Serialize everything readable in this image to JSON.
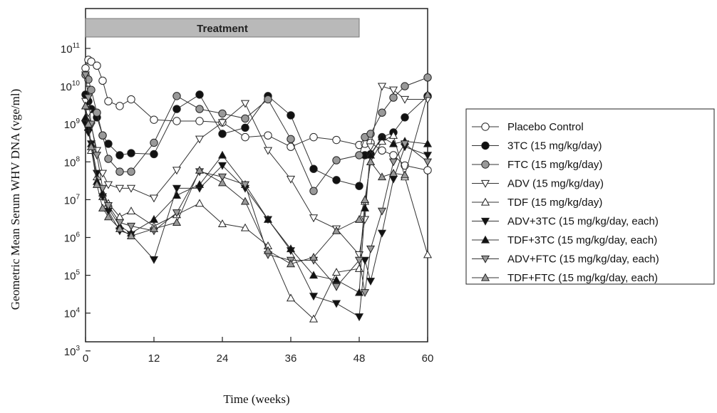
{
  "chart_data": {
    "type": "line",
    "title": "",
    "xlabel": "Time (weeks)",
    "ylabel": "Geometric Mean Serum WHV DNA (vge/ml)",
    "xlim": [
      0,
      60
    ],
    "x_ticks": [
      "0",
      "12",
      "24",
      "36",
      "48",
      "60"
    ],
    "y_scale": "log",
    "ylim": [
      1000,
      10000000000000
    ],
    "y_ticks": [
      {
        "base": "10",
        "exp": "3"
      },
      {
        "base": "10",
        "exp": "4"
      },
      {
        "base": "10",
        "exp": "5"
      },
      {
        "base": "10",
        "exp": "6"
      },
      {
        "base": "10",
        "exp": "7"
      },
      {
        "base": "10",
        "exp": "8"
      },
      {
        "base": "10",
        "exp": "9"
      },
      {
        "base": "10",
        "exp": "10"
      },
      {
        "base": "10",
        "exp": "11"
      }
    ],
    "annotation": {
      "label": "Treatment",
      "x_start": 0,
      "x_end": 48
    },
    "legend_position": "right",
    "grid": false,
    "series": [
      {
        "name": "Placebo Control",
        "marker": "circle",
        "fill": "#ffffff",
        "x": [
          0,
          0.5,
          1,
          2,
          3,
          4,
          6,
          8,
          12,
          16,
          20,
          24,
          28,
          32,
          36,
          40,
          44,
          48,
          49,
          50,
          52,
          54,
          56,
          60
        ],
        "y": [
          30000000000.0,
          50000000000.0,
          45000000000.0,
          35000000000.0,
          14000000000.0,
          4000000000.0,
          3000000000.0,
          4500000000.0,
          1300000000.0,
          1200000000.0,
          1200000000.0,
          1100000000.0,
          450000000.0,
          500000000.0,
          250000000.0,
          450000000.0,
          380000000.0,
          280000000.0,
          300000000.0,
          320000000.0,
          200000000.0,
          150000000.0,
          80000000.0,
          60000000.0
        ]
      },
      {
        "name": "3TC (15 mg/kg/day)",
        "marker": "circle",
        "fill": "#111111",
        "x": [
          0,
          0.5,
          1,
          2,
          3,
          4,
          6,
          8,
          12,
          16,
          20,
          24,
          28,
          32,
          36,
          40,
          44,
          48,
          49,
          50,
          52,
          54,
          56,
          60
        ],
        "y": [
          6000000000.0,
          4000000000.0,
          2500000000.0,
          1500000000.0,
          500000000.0,
          300000000.0,
          150000000.0,
          170000000.0,
          160000000.0,
          2500000000.0,
          6000000000.0,
          550000000.0,
          800000000.0,
          5500000000.0,
          1700000000.0,
          65000000.0,
          33000000.0,
          23000000.0,
          150000000.0,
          160000000.0,
          450000000.0,
          600000000.0,
          1500000000.0,
          5500000000.0
        ]
      },
      {
        "name": "FTC (15 mg/kg/day)",
        "marker": "circle",
        "fill": "#999999",
        "x": [
          0,
          0.5,
          1,
          2,
          3,
          4,
          6,
          8,
          12,
          16,
          20,
          24,
          28,
          32,
          36,
          40,
          44,
          48,
          49,
          50,
          52,
          54,
          56,
          60
        ],
        "y": [
          20000000000.0,
          15000000000.0,
          8000000000.0,
          2000000000.0,
          500000000.0,
          120000000.0,
          55000000.0,
          55000000.0,
          320000000.0,
          5500000000.0,
          2500000000.0,
          1900000000.0,
          1400000000.0,
          4500000000.0,
          400000000.0,
          17000000.0,
          110000000.0,
          150000000.0,
          450000000.0,
          550000000.0,
          2000000000.0,
          5000000000.0,
          10000000000.0,
          17000000000.0
        ]
      },
      {
        "name": "ADV (15 mg/kg/day)",
        "marker": "triangle-down",
        "fill": "#ffffff",
        "x": [
          0,
          0.5,
          1,
          2,
          3,
          4,
          6,
          8,
          12,
          16,
          20,
          24,
          28,
          32,
          36,
          40,
          44,
          48,
          49,
          50,
          52,
          54,
          56,
          60
        ],
        "y": [
          4000000000.0,
          2000000000.0,
          900000000.0,
          200000000.0,
          50000000.0,
          25000000.0,
          20000000.0,
          20000000.0,
          11000000.0,
          60000000.0,
          400000000.0,
          1100000000.0,
          3500000000.0,
          200000000.0,
          35000000.0,
          3300000.0,
          1700000.0,
          350000.0,
          3000000.0,
          250000000.0,
          10000000000.0,
          8000000000.0,
          4500000000.0,
          4500000000.0
        ]
      },
      {
        "name": "TDF (15 mg/kg/day)",
        "marker": "triangle-up",
        "fill": "#ffffff",
        "x": [
          0,
          0.5,
          1,
          2,
          3,
          4,
          6,
          8,
          12,
          16,
          20,
          24,
          28,
          32,
          36,
          40,
          44,
          48,
          49,
          50,
          52,
          54,
          56,
          60
        ],
        "y": [
          3000000000.0,
          800000000.0,
          200000000.0,
          40000000.0,
          12000000.0,
          8000000.0,
          3500000.0,
          5000000.0,
          2000000.0,
          4000000.0,
          8000000.0,
          2300000.0,
          1800000.0,
          600000.0,
          25000.0,
          7000.0,
          120000.0,
          150000.0,
          9000000.0,
          100000000.0,
          350000000.0,
          500000000.0,
          40000000.0,
          350000.0
        ]
      },
      {
        "name": "ADV+3TC (15 mg/kg/day, each)",
        "marker": "triangle-down",
        "fill": "#111111",
        "x": [
          0,
          0.5,
          1,
          2,
          3,
          4,
          6,
          8,
          12,
          16,
          20,
          24,
          28,
          32,
          36,
          40,
          44,
          48,
          49,
          50,
          52,
          54,
          56,
          60
        ],
        "y": [
          1000000000.0,
          600000000.0,
          300000000.0,
          50000000.0,
          12000000.0,
          5000000.0,
          1500000.0,
          1200000.0,
          260000.0,
          20000000.0,
          20000000.0,
          80000000.0,
          20000000.0,
          3000000.0,
          450000.0,
          28000.0,
          18000.0,
          8000.0,
          250000.0,
          70000.0,
          1300000.0,
          35000000.0,
          250000000.0,
          150000000.0
        ]
      },
      {
        "name": "TDF+3TC (15 mg/kg/day, each)",
        "marker": "triangle-up",
        "fill": "#111111",
        "x": [
          0,
          0.5,
          1,
          2,
          3,
          4,
          6,
          8,
          12,
          16,
          20,
          24,
          28,
          32,
          36,
          40,
          44,
          48,
          49,
          50,
          52,
          54,
          56,
          60
        ],
        "y": [
          1500000000.0,
          800000000.0,
          300000000.0,
          30000000.0,
          15000000.0,
          6000000.0,
          2000000.0,
          1300000.0,
          3000000.0,
          13000000.0,
          25000000.0,
          150000000.0,
          25000000.0,
          3000000.0,
          500000.0,
          100000.0,
          75000.0,
          35000.0,
          6000000.0,
          150000000.0,
          450000000.0,
          300000000.0,
          350000000.0,
          300000000.0
        ]
      },
      {
        "name": "ADV+FTC (15 mg/kg/day, each)",
        "marker": "triangle-down",
        "fill": "#999999",
        "x": [
          0,
          0.5,
          1,
          2,
          3,
          4,
          6,
          8,
          12,
          16,
          20,
          24,
          28,
          32,
          36,
          40,
          44,
          48,
          49,
          50,
          52,
          54,
          56,
          60
        ],
        "y": [
          20000000000.0,
          5000000000.0,
          1000000000.0,
          150000000.0,
          20000000.0,
          7000000.0,
          2500000.0,
          2000000.0,
          1500000.0,
          4500000.0,
          55000000.0,
          40000000.0,
          25000000.0,
          350000.0,
          250000.0,
          250000.0,
          50000.0,
          250000.0,
          35000.0,
          500000.0,
          5000000.0,
          100000000.0,
          300000000.0,
          100000000.0
        ]
      },
      {
        "name": "TDF+FTC (15 mg/kg/day, each)",
        "marker": "triangle-up",
        "fill": "#999999",
        "x": [
          0,
          0.5,
          1,
          2,
          3,
          4,
          6,
          8,
          12,
          16,
          20,
          24,
          28,
          32,
          36,
          40,
          44,
          48,
          49,
          50,
          52,
          54,
          56,
          60
        ],
        "y": [
          3000000000.0,
          1000000000.0,
          250000000.0,
          25000000.0,
          6000000.0,
          3500000.0,
          1700000.0,
          1100000.0,
          1700000.0,
          2500000.0,
          60000000.0,
          28000000.0,
          9000000.0,
          450000.0,
          200000.0,
          300000.0,
          1500000.0,
          3000000.0,
          10000000.0,
          100000000.0,
          40000000.0,
          50000000.0,
          45000000.0,
          6000000000.0
        ]
      }
    ]
  }
}
